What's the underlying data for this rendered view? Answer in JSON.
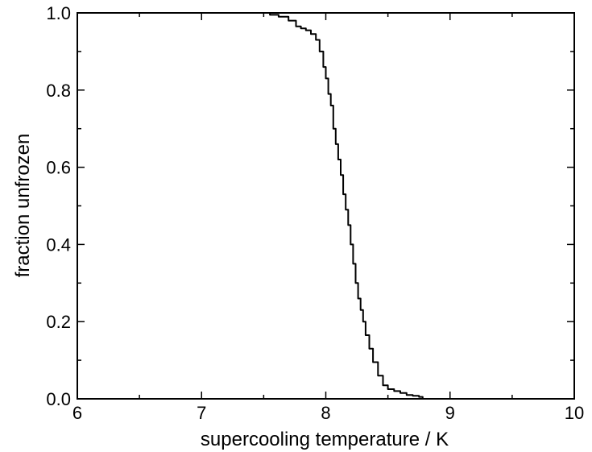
{
  "chart_data": {
    "type": "line",
    "title": "",
    "xlabel": "supercooling temperature / K",
    "ylabel": "fraction unfrozen",
    "xlim": [
      6,
      10
    ],
    "ylim": [
      0.0,
      1.0
    ],
    "xticks": [
      "6",
      "7",
      "8",
      "9",
      "10"
    ],
    "yticks": [
      "0.0",
      "0.2",
      "0.4",
      "0.6",
      "0.8",
      "1.0"
    ],
    "grid": false,
    "legend": "none",
    "series": [
      {
        "x": [
          7.48,
          7.55,
          7.62,
          7.7,
          7.76,
          7.8,
          7.84,
          7.88,
          7.92,
          7.95,
          7.98,
          8.0,
          8.02,
          8.04,
          8.06,
          8.08,
          8.1,
          8.12,
          8.14,
          8.16,
          8.18,
          8.2,
          8.22,
          8.24,
          8.26,
          8.28,
          8.3,
          8.32,
          8.35,
          8.38,
          8.42,
          8.46,
          8.5,
          8.55,
          8.6,
          8.65,
          8.7,
          8.75,
          8.78
        ],
        "y": [
          1.0,
          0.995,
          0.99,
          0.98,
          0.965,
          0.96,
          0.955,
          0.945,
          0.93,
          0.9,
          0.86,
          0.83,
          0.79,
          0.76,
          0.7,
          0.66,
          0.62,
          0.58,
          0.53,
          0.49,
          0.45,
          0.4,
          0.35,
          0.3,
          0.26,
          0.23,
          0.2,
          0.165,
          0.13,
          0.095,
          0.06,
          0.035,
          0.025,
          0.02,
          0.015,
          0.01,
          0.008,
          0.005,
          0.0
        ]
      }
    ]
  }
}
